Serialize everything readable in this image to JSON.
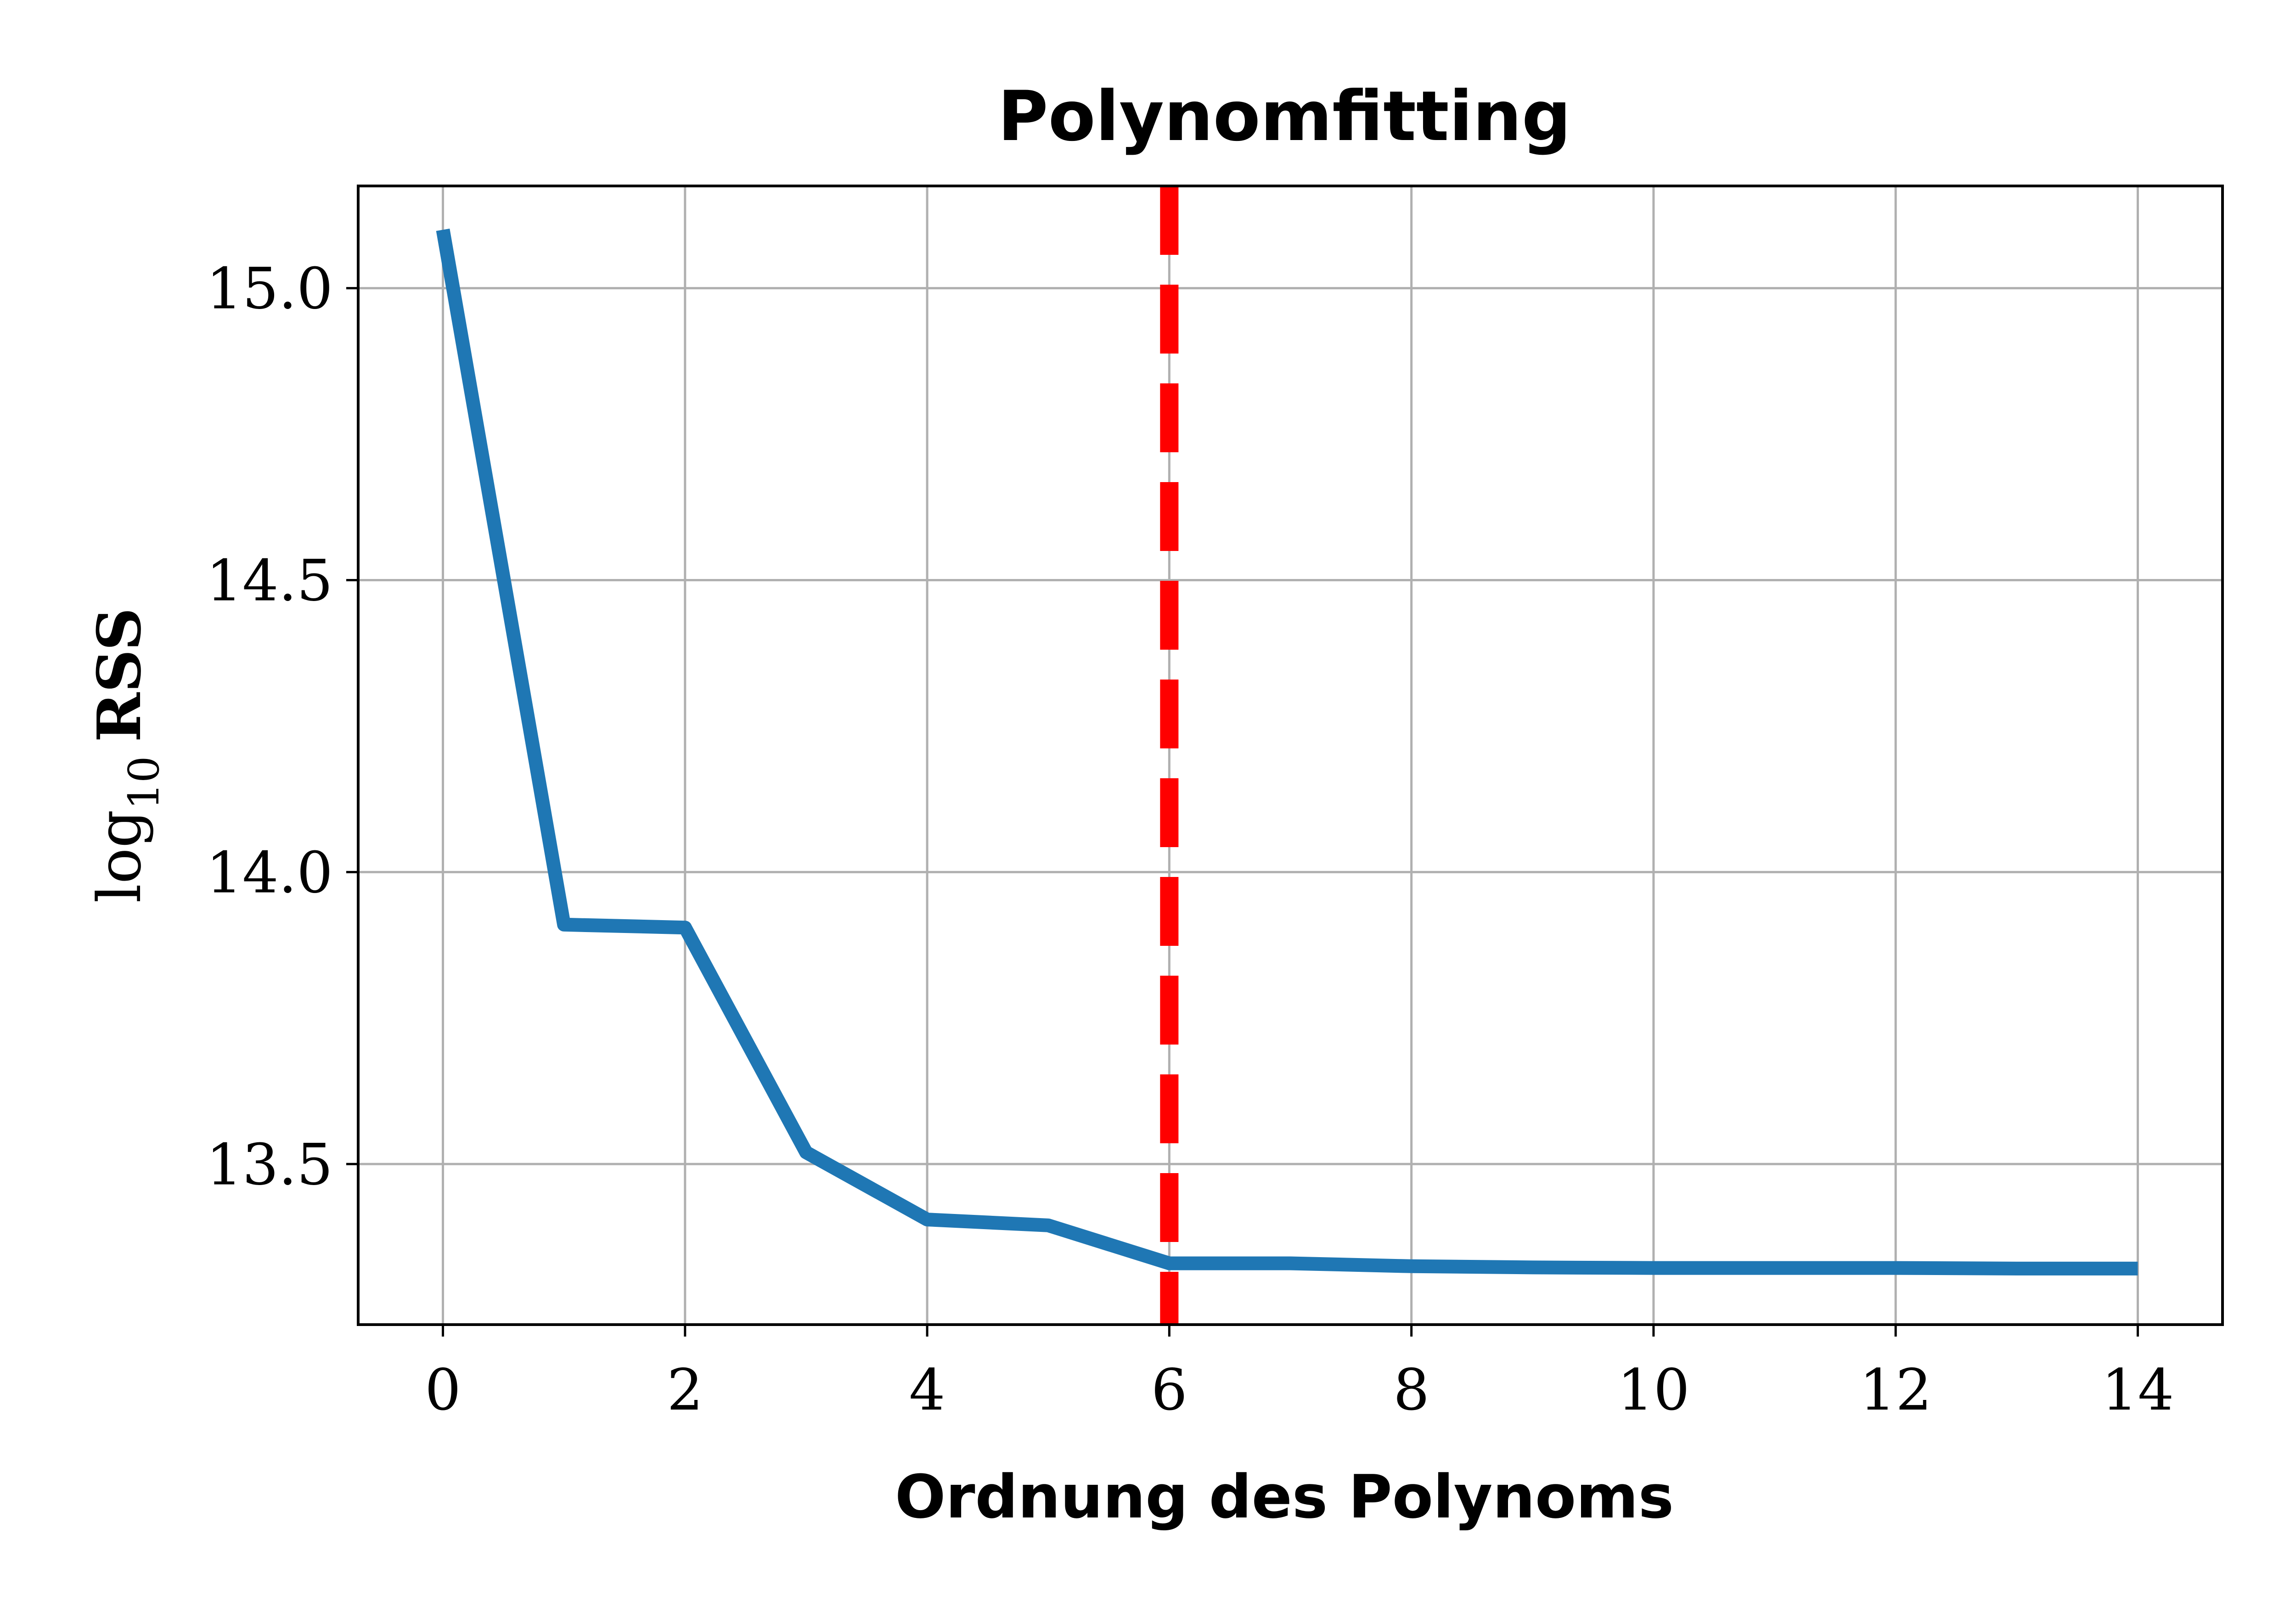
{
  "chart_data": {
    "type": "line",
    "title": "Polynomfitting",
    "xlabel": "Ordnung des Polynoms",
    "ylabel": {
      "prefix": "log",
      "subscript": "10",
      "main": "RSS"
    },
    "xlim": [
      -0.7,
      14.7
    ],
    "ylim": [
      13.225,
      15.175
    ],
    "xticks": [
      0,
      2,
      4,
      6,
      8,
      10,
      12,
      14
    ],
    "xtick_labels": [
      "0",
      "2",
      "4",
      "6",
      "8",
      "10",
      "12",
      "14"
    ],
    "yticks": [
      13.5,
      14.0,
      14.5,
      15.0
    ],
    "ytick_labels": [
      "13.5",
      "14.0",
      "14.5",
      "15.0"
    ],
    "grid": true,
    "series": [
      {
        "color": "#1f77b4",
        "x": [
          0,
          1,
          2,
          3,
          4,
          5,
          6,
          7,
          8,
          9,
          10,
          11,
          12,
          13,
          14
        ],
        "y": [
          15.1,
          13.91,
          13.905,
          13.52,
          13.405,
          13.395,
          13.33,
          13.33,
          13.325,
          13.323,
          13.322,
          13.322,
          13.322,
          13.321,
          13.321
        ]
      }
    ],
    "vline": {
      "x": 6,
      "color": "#ff0000",
      "style": "dashed"
    }
  }
}
